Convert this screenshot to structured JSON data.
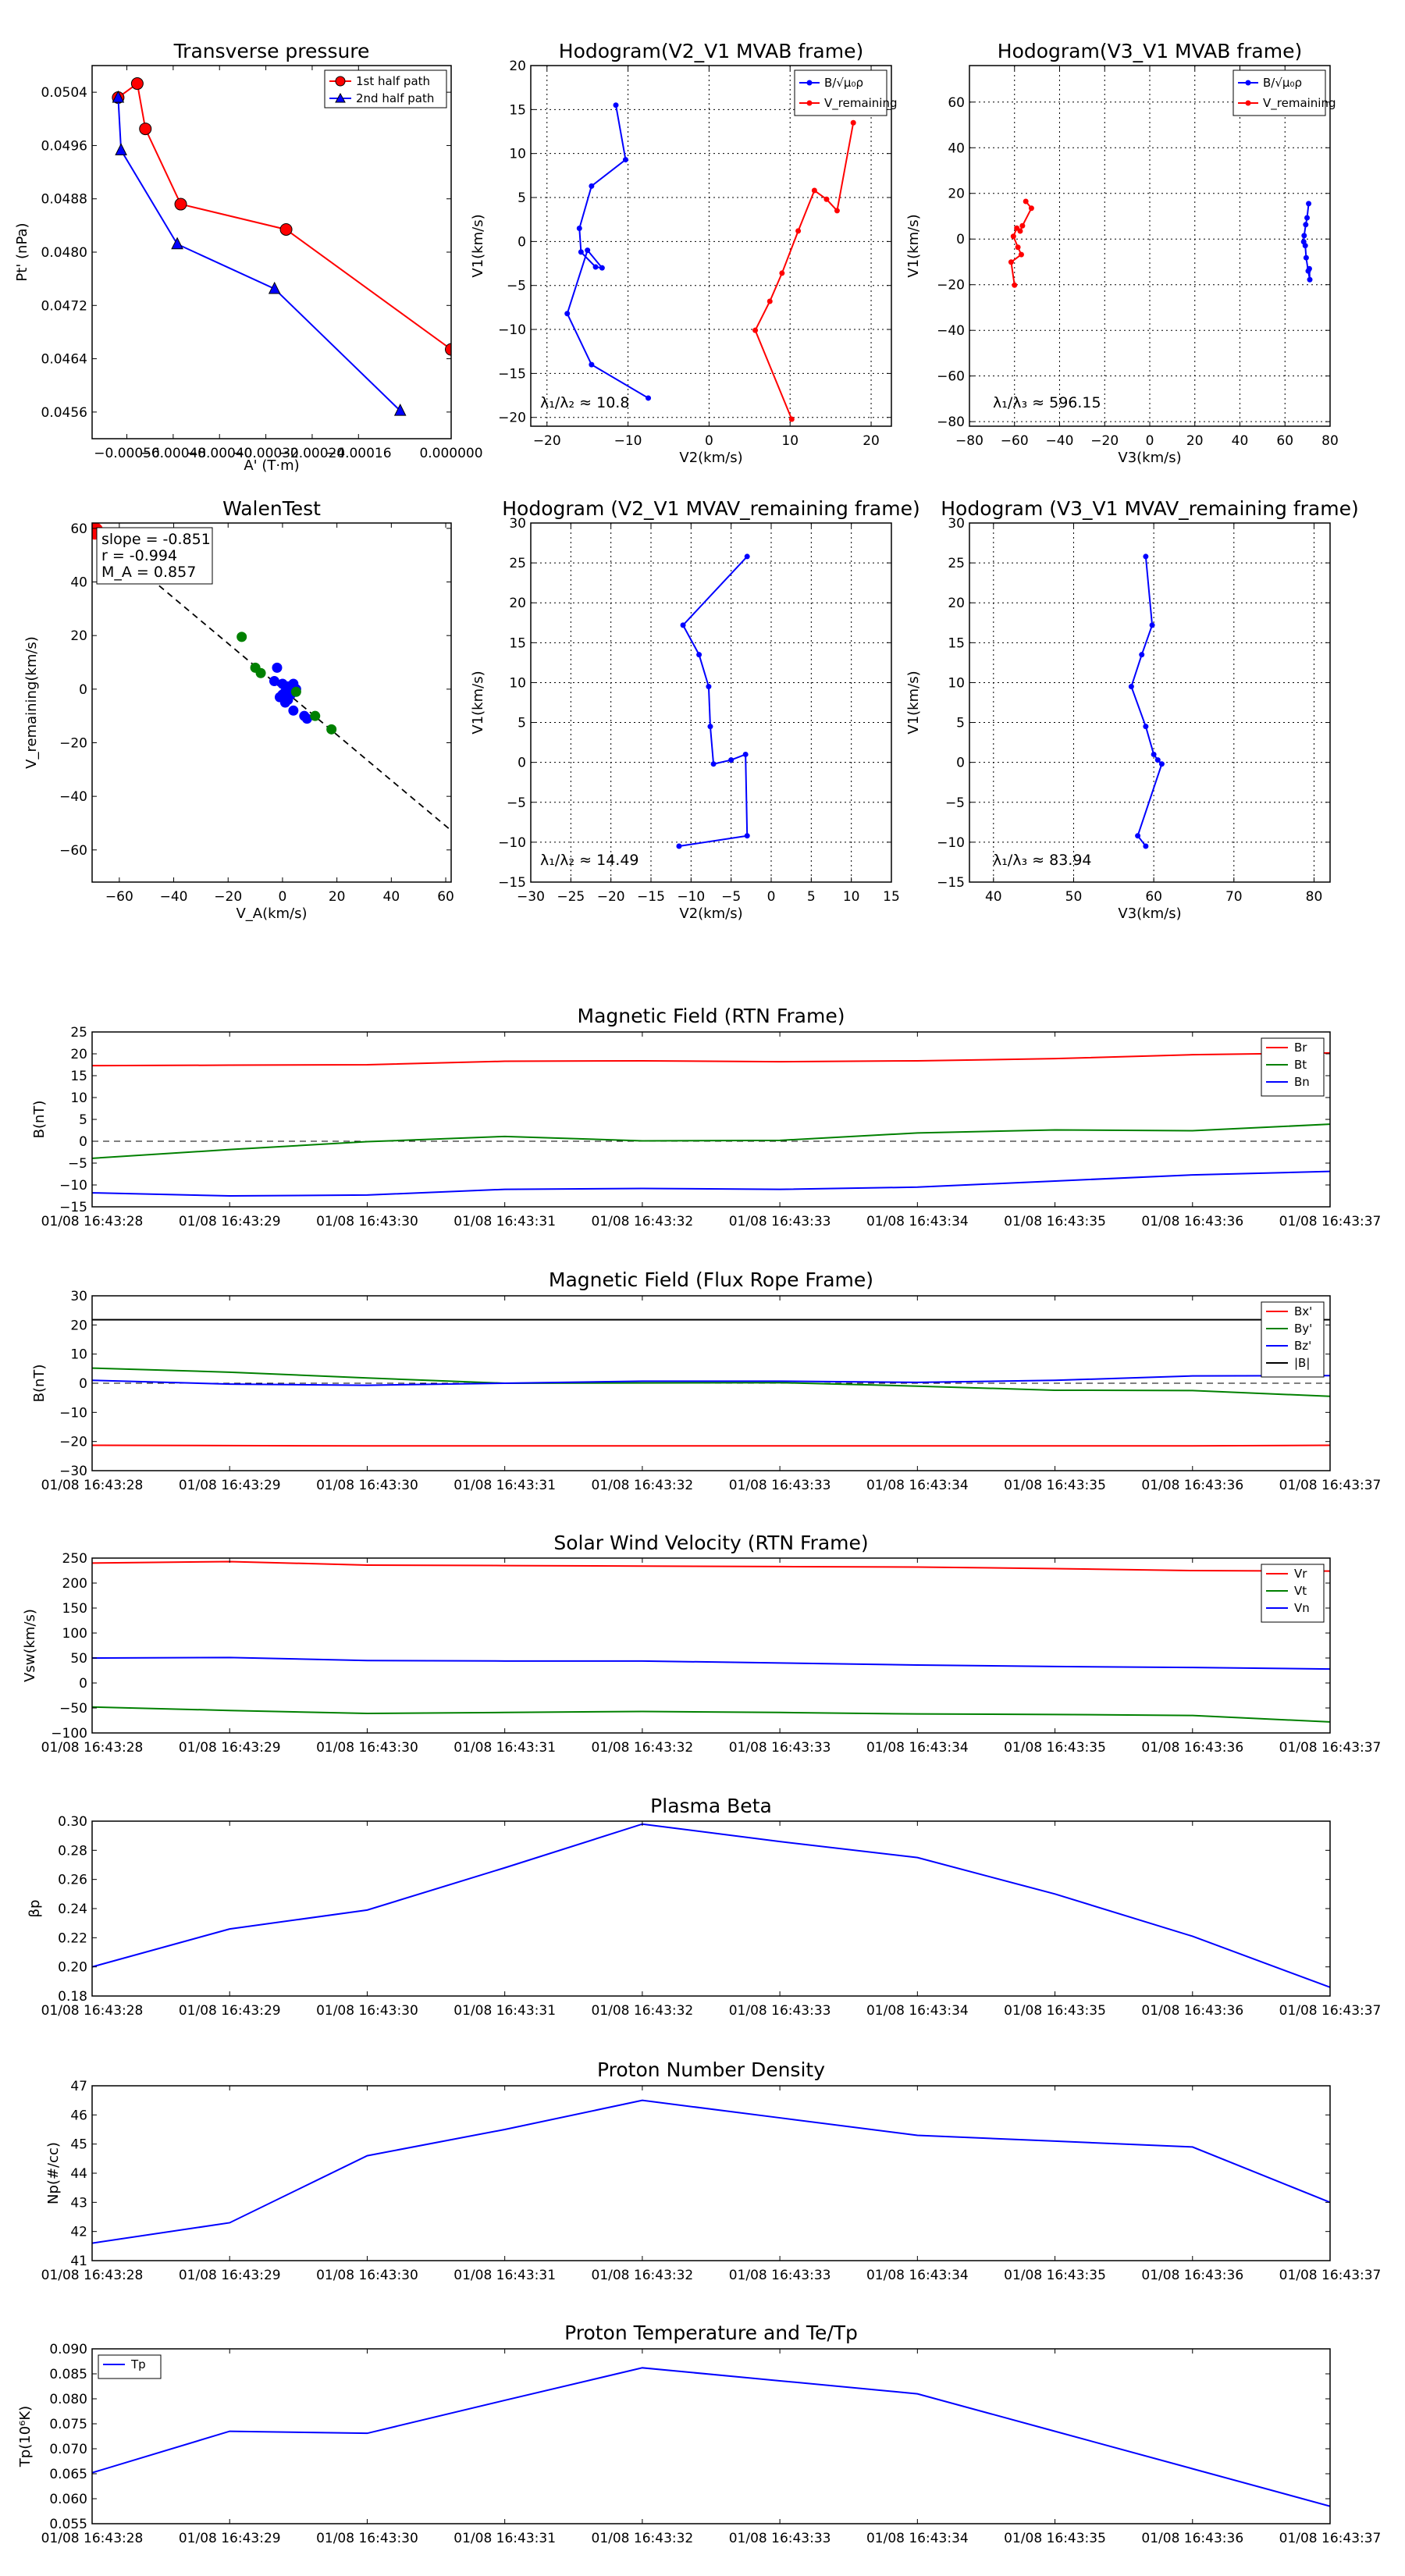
{
  "chart_data": [
    {
      "id": "tp",
      "type": "line",
      "title": "Transverse pressure",
      "xlabel": "A' (T·m)",
      "ylabel": "Pt' (nPa)",
      "xlim": [
        -0.00062,
        0.0
      ],
      "ylim": [
        0.0452,
        0.0508
      ],
      "xticks": [
        -0.00056,
        -0.00048,
        -0.0004,
        -0.00032,
        -0.00024,
        -0.00016,
        0.0
      ],
      "xtick_labels": [
        "−0.00056",
        "−0.00048",
        "−0.00040",
        "−0.00032",
        "−0.00024",
        "−0.00016",
        "0.000000"
      ],
      "yticks": [
        0.0456,
        0.0464,
        0.0472,
        0.048,
        0.0488,
        0.0496,
        0.0504
      ],
      "ytick_labels": [
        "0.0456",
        "0.0464",
        "0.0472",
        "0.0480",
        "0.0488",
        "0.0496",
        "0.0504"
      ],
      "grid": false,
      "legend": "top-right",
      "series": [
        {
          "name": "1st half path",
          "color": "#ff0000",
          "marker": "circle",
          "x": [
            -0.000575,
            -0.000542,
            -0.000528,
            -0.000467,
            -0.000285,
            0.0
          ],
          "y": [
            0.05032,
            0.05053,
            0.04985,
            0.04872,
            0.04834,
            0.04654
          ]
        },
        {
          "name": "2nd half path",
          "color": "#0000ff",
          "marker": "triangle",
          "x": [
            -0.000575,
            -0.00057,
            -0.000473,
            -0.000305,
            -8.8e-05
          ],
          "y": [
            0.05032,
            0.04953,
            0.04812,
            0.04745,
            0.04562
          ]
        }
      ]
    },
    {
      "id": "h1",
      "type": "line",
      "title": "Hodogram(V2_V1 MVAB frame)",
      "xlabel": "V2(km/s)",
      "ylabel": "V1(km/s)",
      "xlim": [
        -22,
        22.5
      ],
      "ylim": [
        -21,
        20
      ],
      "xticks": [
        -20,
        -10,
        0,
        10,
        20
      ],
      "xtick_labels": [
        "−20",
        "−10",
        "0",
        "10",
        "20"
      ],
      "yticks": [
        -20,
        -15,
        -10,
        -5,
        0,
        5,
        10,
        15,
        20
      ],
      "ytick_labels": [
        "−20",
        "−15",
        "−10",
        "−5",
        "0",
        "5",
        "10",
        "15",
        "20"
      ],
      "grid": true,
      "legend": "top-right",
      "annotation": "λ₁/λ₂ ≈ 10.8",
      "series": [
        {
          "name": "B/√μ₀ρ",
          "color": "#0000ff",
          "marker": "dot",
          "x": [
            -11.5,
            -10.3,
            -14.5,
            -16.0,
            -15.8,
            -14.0,
            -13.2,
            -15.0,
            -17.5,
            -14.5,
            -7.5
          ],
          "y": [
            15.5,
            9.3,
            6.3,
            1.5,
            -1.2,
            -2.9,
            -3.0,
            -1.0,
            -8.2,
            -14.0,
            -17.8
          ]
        },
        {
          "name": "V_remaining",
          "color": "#ff0000",
          "marker": "dot",
          "x": [
            17.8,
            15.8,
            14.5,
            13.0,
            11.0,
            9.0,
            7.5,
            5.7,
            10.2
          ],
          "y": [
            13.5,
            3.5,
            4.8,
            5.8,
            1.2,
            -3.6,
            -6.8,
            -10.1,
            -20.2
          ]
        }
      ]
    },
    {
      "id": "h2",
      "type": "line",
      "title": "Hodogram(V3_V1 MVAB frame)",
      "xlabel": "V3(km/s)",
      "ylabel": "V1(km/s)",
      "xlim": [
        -80,
        80
      ],
      "ylim": [
        -82,
        76
      ],
      "xticks": [
        -80,
        -60,
        -40,
        -20,
        0,
        20,
        40,
        60,
        80
      ],
      "xtick_labels": [
        "−80",
        "−60",
        "−40",
        "−20",
        "0",
        "20",
        "40",
        "60",
        "80"
      ],
      "yticks": [
        -80,
        -60,
        -40,
        -20,
        0,
        20,
        40,
        60
      ],
      "ytick_labels": [
        "−80",
        "−60",
        "−40",
        "−20",
        "0",
        "20",
        "40",
        "60"
      ],
      "grid": true,
      "legend": "top-right",
      "annotation": "λ₁/λ₃ ≈ 596.15",
      "series": [
        {
          "name": "B/√μ₀ρ",
          "color": "#0000ff",
          "marker": "dot",
          "x": [
            70.5,
            69.8,
            69.2,
            68.5,
            68.3,
            69.0,
            69.4,
            70.3,
            71.0,
            70.8
          ],
          "y": [
            15.5,
            9.3,
            6.3,
            1.5,
            -1.2,
            -2.9,
            -8.2,
            -14.0,
            -17.8,
            -13.0
          ]
        },
        {
          "name": "V_remaining",
          "color": "#ff0000",
          "marker": "dot",
          "x": [
            -55.0,
            -52.5,
            -56.5,
            -57.5,
            -59.0,
            -60.5,
            -58.5,
            -57.0,
            -61.5,
            -60.0
          ],
          "y": [
            16.5,
            13.5,
            5.8,
            3.5,
            4.8,
            1.2,
            -3.6,
            -6.8,
            -10.1,
            -20.2
          ]
        }
      ]
    },
    {
      "id": "walen",
      "type": "scatter",
      "title": "WalenTest",
      "xlabel": "V_A(km/s)",
      "ylabel": "V_remaining(km/s)",
      "xlim": [
        -70,
        62
      ],
      "ylim": [
        -72,
        62
      ],
      "xticks": [
        -60,
        -40,
        -20,
        0,
        20,
        40,
        60
      ],
      "xtick_labels": [
        "−60",
        "−40",
        "−20",
        "0",
        "20",
        "40",
        "60"
      ],
      "yticks": [
        -60,
        -40,
        -20,
        0,
        20,
        40,
        60
      ],
      "ytick_labels": [
        "−60",
        "−40",
        "−20",
        "0",
        "20",
        "40",
        "60"
      ],
      "grid": false,
      "stats": [
        "slope = -0.851",
        "r = -0.994",
        "M_A = 0.857"
      ],
      "fit_line": {
        "slope": -0.851,
        "color": "#000000",
        "style": "dashed"
      },
      "series": [
        {
          "name": "blue",
          "color": "#0000ff",
          "x": [
            -3,
            -2,
            0,
            2,
            4,
            1,
            2,
            4,
            8,
            9,
            0,
            -1,
            1,
            3,
            5
          ],
          "y": [
            3,
            8,
            2,
            1,
            2,
            -1,
            -4,
            -8,
            -10,
            -11,
            -2,
            -3,
            -5,
            -2,
            0
          ]
        },
        {
          "name": "green",
          "color": "#008000",
          "x": [
            -15,
            -10,
            -8,
            5,
            12,
            18
          ],
          "y": [
            19.5,
            8,
            6,
            -1,
            -10,
            -15
          ]
        },
        {
          "name": "red",
          "color": "#ff0000",
          "x": [
            -69
          ],
          "y": [
            59
          ]
        }
      ]
    },
    {
      "id": "h3",
      "type": "line",
      "title": "Hodogram (V2_V1 MVAV_remaining frame)",
      "xlabel": "V2(km/s)",
      "ylabel": "V1(km/s)",
      "xlim": [
        -30,
        15
      ],
      "ylim": [
        -15,
        30
      ],
      "xticks": [
        -30,
        -25,
        -20,
        -15,
        -10,
        -5,
        0,
        5,
        10,
        15
      ],
      "xtick_labels": [
        "−30",
        "−25",
        "−20",
        "−15",
        "−10",
        "−5",
        "0",
        "5",
        "10",
        "15"
      ],
      "yticks": [
        -15,
        -10,
        -5,
        0,
        5,
        10,
        15,
        20,
        25,
        30
      ],
      "ytick_labels": [
        "−15",
        "−10",
        "−5",
        "0",
        "5",
        "10",
        "15",
        "20",
        "25",
        "30"
      ],
      "grid": true,
      "annotation": "λ₁/λ₂ ≈ 14.49",
      "series": [
        {
          "name": "V",
          "color": "#0000ff",
          "marker": "dot",
          "x": [
            -3.0,
            -11.0,
            -9.0,
            -7.8,
            -7.6,
            -7.2,
            -5.0,
            -3.2,
            -3.0,
            -11.5
          ],
          "y": [
            25.8,
            17.2,
            13.5,
            9.5,
            4.5,
            -0.2,
            0.3,
            1.0,
            -9.2,
            -10.5
          ]
        }
      ]
    },
    {
      "id": "h4",
      "type": "line",
      "title": "Hodogram (V3_V1 MVAV_remaining frame)",
      "xlabel": "V3(km/s)",
      "ylabel": "V1(km/s)",
      "xlim": [
        37,
        82
      ],
      "ylim": [
        -15,
        30
      ],
      "xticks": [
        40,
        50,
        60,
        70,
        80
      ],
      "xtick_labels": [
        "40",
        "50",
        "60",
        "70",
        "80"
      ],
      "yticks": [
        -15,
        -10,
        -5,
        0,
        5,
        10,
        15,
        20,
        25,
        30
      ],
      "ytick_labels": [
        "−15",
        "−10",
        "−5",
        "0",
        "5",
        "10",
        "15",
        "20",
        "25",
        "30"
      ],
      "grid": true,
      "annotation": "λ₁/λ₃ ≈ 83.94",
      "series": [
        {
          "name": "V",
          "color": "#0000ff",
          "marker": "dot",
          "x": [
            59.0,
            59.8,
            58.5,
            57.2,
            59.0,
            60.0,
            60.5,
            61.0,
            58.0,
            59.0
          ],
          "y": [
            25.8,
            17.2,
            13.5,
            9.5,
            4.5,
            1.0,
            0.3,
            -0.2,
            -9.2,
            -10.5
          ]
        }
      ]
    },
    {
      "id": "mag_rtn",
      "type": "line",
      "title": "Magnetic Field (RTN Frame)",
      "xlabel": "",
      "ylabel": "B(nT)",
      "ylim": [
        -15,
        25
      ],
      "yticks": [
        -15,
        -10,
        -5,
        0,
        5,
        10,
        15,
        20,
        25
      ],
      "ytick_labels": [
        "−15",
        "−10",
        "−5",
        "0",
        "5",
        "10",
        "15",
        "20",
        "25"
      ],
      "zero_line": true,
      "legend": "top-right",
      "series": [
        {
          "name": "Br",
          "color": "#ff0000",
          "values": [
            17.3,
            17.4,
            17.5,
            18.3,
            18.4,
            18.2,
            18.4,
            18.9,
            19.8,
            20.2
          ]
        },
        {
          "name": "Bt",
          "color": "#008000",
          "values": [
            -3.9,
            -1.9,
            -0.1,
            1.1,
            0.1,
            0.2,
            1.9,
            2.6,
            2.4,
            3.9
          ]
        },
        {
          "name": "Bn",
          "color": "#0000ff",
          "values": [
            -11.8,
            -12.5,
            -12.3,
            -11.0,
            -10.8,
            -11.0,
            -10.5,
            -9.1,
            -7.7,
            -6.9
          ]
        }
      ]
    },
    {
      "id": "mag_fr",
      "type": "line",
      "title": "Magnetic Field (Flux Rope Frame)",
      "xlabel": "",
      "ylabel": "B(nT)",
      "ylim": [
        -30,
        30
      ],
      "yticks": [
        -30,
        -20,
        -10,
        0,
        10,
        20,
        30
      ],
      "ytick_labels": [
        "−30",
        "−20",
        "−10",
        "0",
        "10",
        "20",
        "30"
      ],
      "zero_line": true,
      "legend": "top-right",
      "series": [
        {
          "name": "Bx'",
          "color": "#ff0000",
          "values": [
            -21.3,
            -21.4,
            -21.5,
            -21.5,
            -21.5,
            -21.5,
            -21.5,
            -21.5,
            -21.5,
            -21.3
          ]
        },
        {
          "name": "By'",
          "color": "#008000",
          "values": [
            5.2,
            3.8,
            1.8,
            0.0,
            0.1,
            0.2,
            -1.0,
            -2.4,
            -2.5,
            -4.5
          ]
        },
        {
          "name": "Bz'",
          "color": "#0000ff",
          "values": [
            1.0,
            -0.3,
            -0.7,
            0.0,
            0.7,
            0.7,
            0.3,
            1.0,
            2.5,
            2.6
          ]
        },
        {
          "name": "|B|",
          "color": "#000000",
          "values": [
            21.8,
            21.8,
            21.8,
            21.8,
            21.8,
            21.8,
            21.8,
            21.8,
            21.8,
            21.8
          ]
        }
      ]
    },
    {
      "id": "vsw",
      "type": "line",
      "title": "Solar Wind Velocity (RTN Frame)",
      "xlabel": "",
      "ylabel": "Vsw(km/s)",
      "ylim": [
        -100,
        250
      ],
      "yticks": [
        -100,
        -50,
        0,
        50,
        100,
        150,
        200,
        250
      ],
      "ytick_labels": [
        "−100",
        "−50",
        "0",
        "50",
        "100",
        "150",
        "200",
        "250"
      ],
      "legend": "top-right",
      "series": [
        {
          "name": "Vr",
          "color": "#ff0000",
          "values": [
            240,
            243,
            236,
            235,
            234,
            233,
            232,
            229,
            225,
            224
          ]
        },
        {
          "name": "Vt",
          "color": "#008000",
          "values": [
            -48,
            -55,
            -61,
            -59,
            -57,
            -59,
            -62,
            -63,
            -65,
            -78
          ]
        },
        {
          "name": "Vn",
          "color": "#0000ff",
          "values": [
            50,
            51,
            45,
            44,
            44,
            40,
            36,
            33,
            31,
            28
          ]
        }
      ]
    },
    {
      "id": "beta",
      "type": "line",
      "title": "Plasma Beta",
      "xlabel": "",
      "ylabel": "βp",
      "ylim": [
        0.18,
        0.3
      ],
      "yticks": [
        0.18,
        0.2,
        0.22,
        0.24,
        0.26,
        0.28,
        0.3
      ],
      "ytick_labels": [
        "0.18",
        "0.20",
        "0.22",
        "0.24",
        "0.26",
        "0.28",
        "0.30"
      ],
      "series": [
        {
          "name": "beta",
          "color": "#0000ff",
          "values": [
            0.2,
            0.226,
            0.239,
            0.268,
            0.298,
            0.286,
            0.275,
            0.25,
            0.221,
            0.186
          ]
        }
      ]
    },
    {
      "id": "np",
      "type": "line",
      "title": "Proton Number Density",
      "xlabel": "",
      "ylabel": "Np(#/cc)",
      "ylim": [
        41,
        47
      ],
      "yticks": [
        41,
        42,
        43,
        44,
        45,
        46,
        47
      ],
      "ytick_labels": [
        "41",
        "42",
        "43",
        "44",
        "45",
        "46",
        "47"
      ],
      "series": [
        {
          "name": "Np",
          "color": "#0000ff",
          "values": [
            41.6,
            42.3,
            44.6,
            45.5,
            46.5,
            45.9,
            45.3,
            45.1,
            44.9,
            43.0
          ]
        }
      ]
    },
    {
      "id": "tp_temp",
      "type": "line",
      "title": "Proton Temperature and Te/Tp",
      "xlabel": "",
      "ylabel": "Tp(10⁶K)",
      "ylim": [
        0.055,
        0.09
      ],
      "yticks": [
        0.055,
        0.06,
        0.065,
        0.07,
        0.075,
        0.08,
        0.085,
        0.09
      ],
      "ytick_labels": [
        "0.055",
        "0.060",
        "0.065",
        "0.070",
        "0.075",
        "0.080",
        "0.085",
        "0.090"
      ],
      "legend": "top-left",
      "series": [
        {
          "name": "Tp",
          "color": "#0000ff",
          "values": [
            0.0652,
            0.0735,
            0.0731,
            0.0797,
            0.0862,
            0.0836,
            0.081,
            0.0735,
            0.066,
            0.0585
          ]
        }
      ]
    }
  ],
  "time_ticks": [
    "01/08 16:43:28",
    "01/08 16:43:29",
    "01/08 16:43:30",
    "01/08 16:43:31",
    "01/08 16:43:32",
    "01/08 16:43:33",
    "01/08 16:43:34",
    "01/08 16:43:35",
    "01/08 16:43:36",
    "01/08 16:43:37"
  ]
}
